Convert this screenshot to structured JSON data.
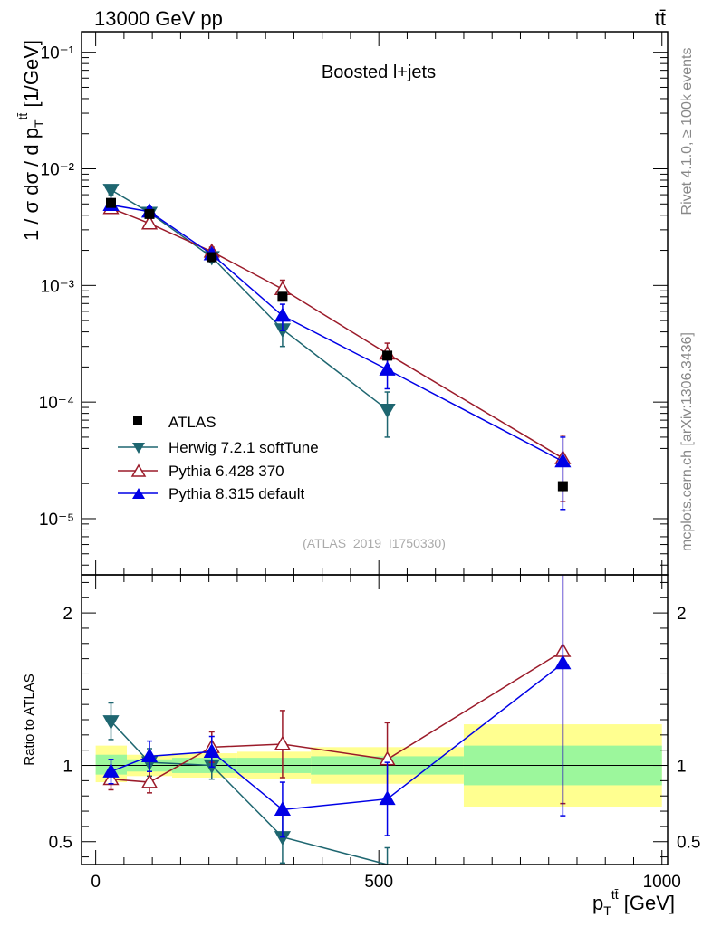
{
  "header": {
    "energy_label": "13000 GeV pp",
    "process_label": "tt̄"
  },
  "side_labels": {
    "rivet": "Rivet 4.1.0, ≥ 100k events",
    "mcplots": "mcplots.cern.ch [arXiv:1306.3436]"
  },
  "chart_data": [
    {
      "type": "scatter",
      "panel": "main",
      "title": "Boosted l+jets",
      "analysis_tag": "(ATLAS_2019_I1750330)",
      "xlabel": "p_T^{tt̄} [GeV]",
      "ylabel": "1 / σ dσ / d p_T^{tt̄} [1/GeV]",
      "yscale": "log",
      "xlim": [
        -25,
        1010
      ],
      "ylim": [
        3.3e-06,
        0.15
      ],
      "y_ticks": [
        {
          "value": 1e-05,
          "label": "10⁻⁵"
        },
        {
          "value": 0.0001,
          "label": "10⁻⁴"
        },
        {
          "value": 0.001,
          "label": "10⁻³"
        },
        {
          "value": 0.01,
          "label": "10⁻²"
        },
        {
          "value": 0.1,
          "label": "10⁻¹"
        }
      ],
      "data": {
        "name": "ATLAS",
        "color": "#000000",
        "x": [
          27,
          95,
          205,
          330,
          515,
          825
        ],
        "xerr_low": [
          27,
          45,
          55,
          60,
          125,
          175
        ],
        "xerr_high": [
          27,
          45,
          55,
          60,
          125,
          175
        ],
        "y": [
          0.0051,
          0.0041,
          0.00175,
          0.0008,
          0.00025,
          1.9e-05
        ],
        "yerr": [
          0.0003,
          0.0002,
          9e-05,
          4e-05,
          1.5e-05,
          2e-06
        ]
      },
      "series": [
        {
          "name": "Herwig 7.2.1 softTune",
          "color": "#1e6670",
          "marker": "triangle-down",
          "x": [
            27,
            95,
            205,
            330,
            515
          ],
          "y": [
            0.0066,
            0.0042,
            0.00175,
            0.00042,
            8.6e-05
          ],
          "yerr": [
            0.0006,
            0.0004,
            0.00018,
            0.00012,
            3.6e-05
          ]
        },
        {
          "name": "Pythia 6.428 370",
          "color": "#9b1b2a",
          "marker": "triangle-open",
          "x": [
            27,
            95,
            205,
            330,
            515,
            825
          ],
          "y": [
            0.0046,
            0.0034,
            0.00195,
            0.00093,
            0.00026,
            3.3e-05
          ],
          "yerr": [
            0.0004,
            0.0003,
            0.00018,
            0.00018,
            6e-05,
            1.9e-05
          ]
        },
        {
          "name": "Pythia 8.315 default",
          "color": "#0000e6",
          "marker": "triangle-up",
          "x": [
            27,
            95,
            205,
            330,
            515,
            825
          ],
          "y": [
            0.0049,
            0.0043,
            0.00185,
            0.00055,
            0.00019,
            3.1e-05
          ],
          "yerr": [
            0.0004,
            0.0004,
            0.00018,
            0.00014,
            6e-05,
            1.9e-05
          ]
        }
      ]
    },
    {
      "type": "scatter",
      "panel": "ratio",
      "ylabel": "Ratio to ATLAS",
      "xlabel": "p_T^{tt̄} [GeV]",
      "xlim": [
        -25,
        1010
      ],
      "ylim": [
        0.35,
        2.25
      ],
      "y_ticks": [
        {
          "value": 0.5,
          "label": "0.5"
        },
        {
          "value": 1,
          "label": "1"
        },
        {
          "value": 2,
          "label": "2"
        }
      ],
      "x_ticks": [
        {
          "value": 0,
          "label": "0"
        },
        {
          "value": 500,
          "label": "500"
        },
        {
          "value": 1000,
          "label": "1000"
        }
      ],
      "bands": [
        {
          "x": [
            0,
            55
          ],
          "inner": [
            0.94,
            1.07
          ],
          "outer": [
            0.89,
            1.13
          ]
        },
        {
          "x": [
            55,
            135
          ],
          "inner": [
            0.96,
            1.04
          ],
          "outer": [
            0.93,
            1.07
          ]
        },
        {
          "x": [
            135,
            250
          ],
          "inner": [
            0.95,
            1.05
          ],
          "outer": [
            0.92,
            1.08
          ]
        },
        {
          "x": [
            250,
            380
          ],
          "inner": [
            0.95,
            1.05
          ],
          "outer": [
            0.91,
            1.09
          ]
        },
        {
          "x": [
            380,
            650
          ],
          "inner": [
            0.94,
            1.06
          ],
          "outer": [
            0.88,
            1.12
          ]
        },
        {
          "x": [
            650,
            1000
          ],
          "inner": [
            0.87,
            1.13
          ],
          "outer": [
            0.73,
            1.27
          ]
        }
      ],
      "series": [
        {
          "name": "Herwig 7.2.1 softTune",
          "color": "#1e6670",
          "marker": "triangle-down",
          "x": [
            27,
            95,
            205,
            330,
            515
          ],
          "y": [
            1.29,
            1.02,
            1.0,
            0.53,
            0.34
          ],
          "yerr": [
            0.12,
            0.09,
            0.09,
            0.17,
            0.12
          ]
        },
        {
          "name": "Pythia 6.428 370",
          "color": "#9b1b2a",
          "marker": "triangle-open",
          "x": [
            27,
            95,
            205,
            330,
            515,
            825
          ],
          "y": [
            0.91,
            0.89,
            1.12,
            1.14,
            1.04,
            1.75
          ],
          "yerr": [
            0.07,
            0.07,
            0.1,
            0.22,
            0.24,
            1.0
          ]
        },
        {
          "name": "Pythia 8.315 default",
          "color": "#0000e6",
          "marker": "triangle-up",
          "x": [
            27,
            95,
            205,
            330,
            515,
            825
          ],
          "y": [
            0.96,
            1.06,
            1.09,
            0.71,
            0.78,
            1.67
          ],
          "yerr": [
            0.08,
            0.1,
            0.1,
            0.18,
            0.24,
            1.0
          ]
        }
      ]
    }
  ]
}
